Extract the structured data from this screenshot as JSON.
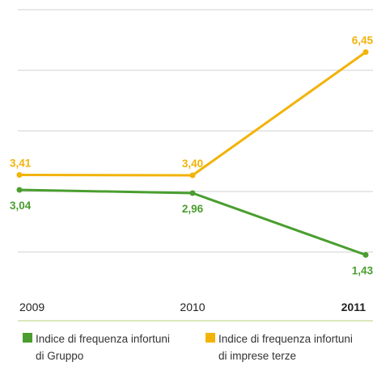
{
  "chart_data": {
    "type": "line",
    "categories": [
      "2009",
      "2010",
      "2011"
    ],
    "highlight_category": "2011",
    "ylim": [
      0,
      7.5
    ],
    "grid": true,
    "legend_position": "bottom",
    "value_format": "comma-decimal-2",
    "series": [
      {
        "name": "Indice di frequenza infortuni di Gruppo",
        "legend_lines": [
          "Indice di frequenza infortuni",
          "di Gruppo"
        ],
        "color": "#4a9e2f",
        "values": [
          3.04,
          2.96,
          1.43
        ],
        "labels": [
          "3,04",
          "2,96",
          "1,43"
        ],
        "label_position": "below"
      },
      {
        "name": "Indice di frequenza infortuni di imprese terze",
        "legend_lines": [
          "Indice di frequenza infortuni",
          "di imprese terze"
        ],
        "color": "#f2b30a",
        "values": [
          3.41,
          3.4,
          6.45
        ],
        "labels": [
          "3,41",
          "3,40",
          "6,45"
        ],
        "label_position": "above"
      }
    ]
  }
}
